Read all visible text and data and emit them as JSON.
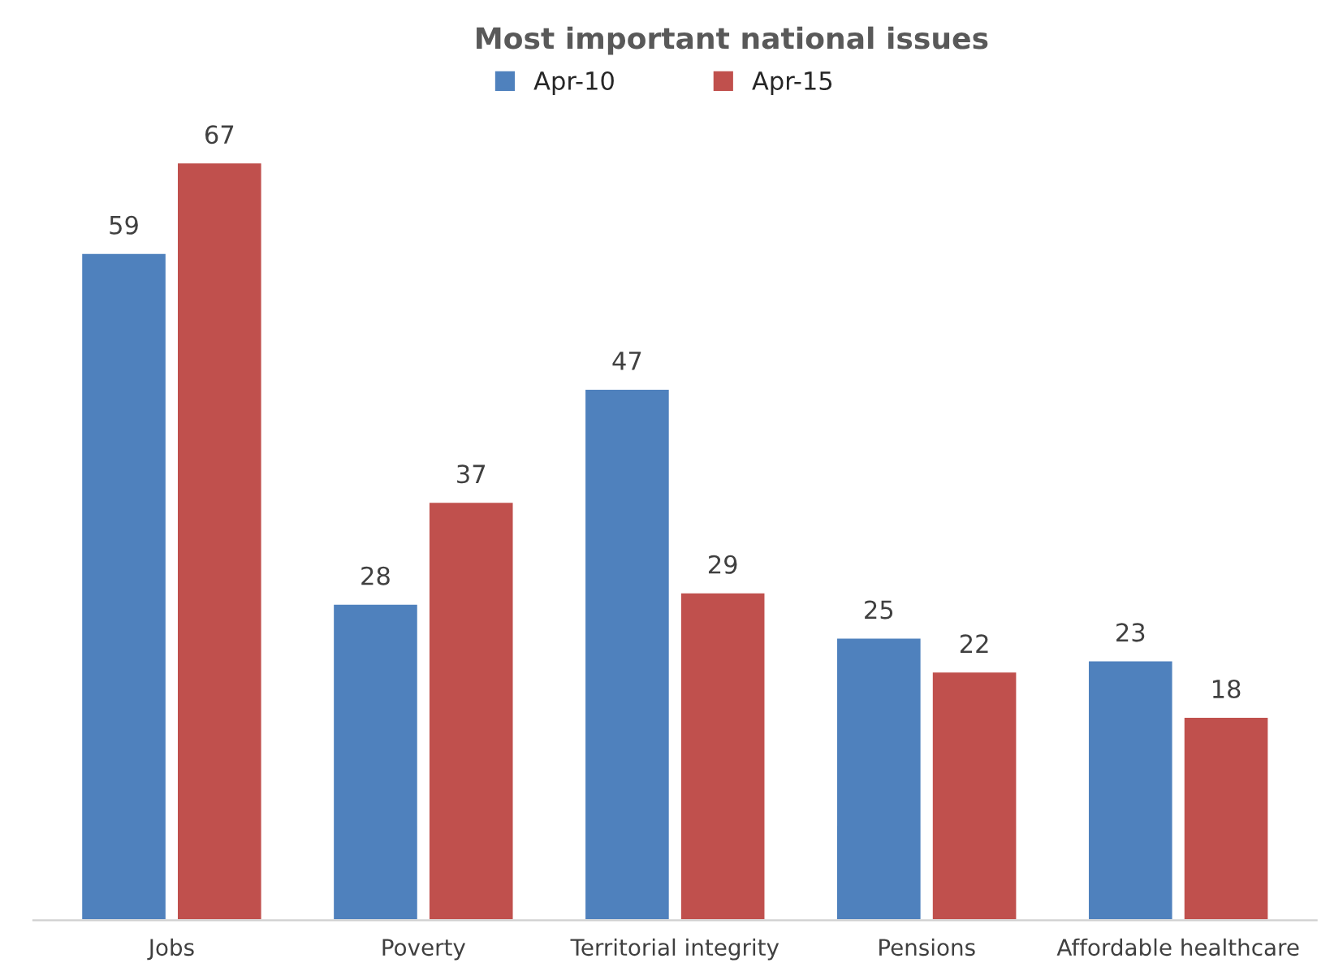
{
  "chart_data": {
    "type": "bar",
    "title": "Most important national issues",
    "categories": [
      "Jobs",
      "Poverty",
      "Territorial integrity",
      "Pensions",
      "Affordable healthcare"
    ],
    "series": [
      {
        "name": "Apr-10",
        "color": "#4f81bd",
        "values": [
          59,
          28,
          47,
          25,
          23
        ]
      },
      {
        "name": "Apr-15",
        "color": "#c0504d",
        "values": [
          67,
          37,
          29,
          22,
          18
        ]
      }
    ],
    "data_labels": true,
    "legend": "top"
  }
}
